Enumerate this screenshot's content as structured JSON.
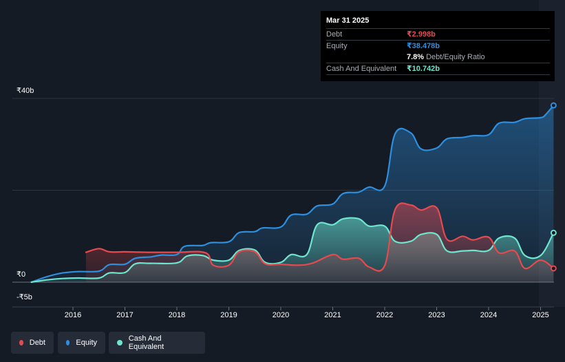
{
  "tooltip": {
    "date": "Mar 31 2025",
    "debt_label": "Debt",
    "debt_value": "₹2.998b",
    "equity_label": "Equity",
    "equity_value": "₹38.478b",
    "ratio_value": "7.8%",
    "ratio_label": "Debt/Equity Ratio",
    "cash_label": "Cash And Equivalent",
    "cash_value": "₹10.742b"
  },
  "legend": {
    "debt": "Debt",
    "equity": "Equity",
    "cash": "Cash And Equivalent"
  },
  "colors": {
    "background": "#151b24",
    "debt": "#e64a4f",
    "equity": "#2d8fe0",
    "cash": "#6ee6cf",
    "grid": "#39404a"
  },
  "chart_data": {
    "type": "area",
    "title": "",
    "xlabel": "",
    "ylabel": "",
    "ylim": [
      -5,
      40
    ],
    "y_ticks": [
      {
        "value": 40,
        "label": "₹40b"
      },
      {
        "value": 0,
        "label": "₹0"
      },
      {
        "value": -5,
        "label": "-₹5b"
      }
    ],
    "x_ticks": [
      "2016",
      "2017",
      "2018",
      "2019",
      "2020",
      "2021",
      "2022",
      "2023",
      "2024",
      "2025"
    ],
    "legend_position": "bottom-left",
    "grid": true,
    "series": [
      {
        "name": "Equity",
        "color": "#2d8fe0",
        "points": [
          [
            2015.2,
            0.0
          ],
          [
            2015.5,
            1.2
          ],
          [
            2015.8,
            2.0
          ],
          [
            2016.1,
            2.3
          ],
          [
            2016.5,
            2.4
          ],
          [
            2016.7,
            3.8
          ],
          [
            2017.0,
            3.9
          ],
          [
            2017.2,
            5.2
          ],
          [
            2017.5,
            5.5
          ],
          [
            2017.7,
            5.9
          ],
          [
            2018.0,
            6.0
          ],
          [
            2018.15,
            7.8
          ],
          [
            2018.5,
            8.0
          ],
          [
            2018.65,
            8.6
          ],
          [
            2019.0,
            8.8
          ],
          [
            2019.2,
            10.8
          ],
          [
            2019.5,
            11.0
          ],
          [
            2019.65,
            11.8
          ],
          [
            2020.0,
            12.0
          ],
          [
            2020.2,
            14.6
          ],
          [
            2020.5,
            14.8
          ],
          [
            2020.7,
            16.6
          ],
          [
            2021.0,
            17.0
          ],
          [
            2021.2,
            19.3
          ],
          [
            2021.5,
            19.6
          ],
          [
            2021.7,
            20.7
          ],
          [
            2022.0,
            20.9
          ],
          [
            2022.2,
            32.3
          ],
          [
            2022.5,
            32.5
          ],
          [
            2022.7,
            29.0
          ],
          [
            2023.0,
            29.2
          ],
          [
            2023.2,
            31.2
          ],
          [
            2023.5,
            31.5
          ],
          [
            2023.7,
            31.9
          ],
          [
            2024.0,
            32.1
          ],
          [
            2024.2,
            34.6
          ],
          [
            2024.5,
            34.8
          ],
          [
            2024.7,
            35.6
          ],
          [
            2025.0,
            35.8
          ],
          [
            2025.1,
            36.5
          ],
          [
            2025.25,
            38.478
          ]
        ]
      },
      {
        "name": "Cash And Equivalent",
        "color": "#6ee6cf",
        "points": [
          [
            2015.2,
            0.0
          ],
          [
            2015.5,
            0.5
          ],
          [
            2015.8,
            0.8
          ],
          [
            2016.1,
            0.9
          ],
          [
            2016.5,
            0.9
          ],
          [
            2016.7,
            2.0
          ],
          [
            2017.0,
            2.1
          ],
          [
            2017.2,
            4.0
          ],
          [
            2017.5,
            4.1
          ],
          [
            2018.0,
            4.2
          ],
          [
            2018.2,
            5.7
          ],
          [
            2018.5,
            5.8
          ],
          [
            2018.7,
            4.8
          ],
          [
            2019.0,
            4.8
          ],
          [
            2019.2,
            6.9
          ],
          [
            2019.5,
            7.0
          ],
          [
            2019.7,
            4.3
          ],
          [
            2020.0,
            4.3
          ],
          [
            2020.2,
            6.0
          ],
          [
            2020.5,
            6.0
          ],
          [
            2020.7,
            12.5
          ],
          [
            2021.0,
            12.5
          ],
          [
            2021.2,
            13.8
          ],
          [
            2021.5,
            13.8
          ],
          [
            2021.7,
            12.2
          ],
          [
            2022.0,
            12.2
          ],
          [
            2022.2,
            8.9
          ],
          [
            2022.5,
            8.9
          ],
          [
            2022.7,
            10.4
          ],
          [
            2023.0,
            10.4
          ],
          [
            2023.2,
            6.8
          ],
          [
            2023.5,
            6.8
          ],
          [
            2023.7,
            6.9
          ],
          [
            2024.0,
            6.9
          ],
          [
            2024.2,
            9.6
          ],
          [
            2024.5,
            9.6
          ],
          [
            2024.7,
            5.8
          ],
          [
            2025.0,
            5.8
          ],
          [
            2025.25,
            10.742
          ]
        ]
      },
      {
        "name": "Debt",
        "color": "#e64a4f",
        "points": [
          [
            2016.25,
            6.5
          ],
          [
            2016.5,
            7.3
          ],
          [
            2016.7,
            6.6
          ],
          [
            2017.0,
            6.6
          ],
          [
            2017.5,
            6.5
          ],
          [
            2018.0,
            6.5
          ],
          [
            2018.55,
            6.4
          ],
          [
            2018.7,
            3.7
          ],
          [
            2019.0,
            3.7
          ],
          [
            2019.2,
            6.6
          ],
          [
            2019.5,
            6.6
          ],
          [
            2019.7,
            4.0
          ],
          [
            2020.0,
            3.9
          ],
          [
            2020.3,
            3.7
          ],
          [
            2020.6,
            4.1
          ],
          [
            2021.0,
            6.0
          ],
          [
            2021.2,
            5.0
          ],
          [
            2021.5,
            5.2
          ],
          [
            2021.7,
            3.3
          ],
          [
            2022.0,
            3.6
          ],
          [
            2022.2,
            15.8
          ],
          [
            2022.5,
            16.8
          ],
          [
            2022.7,
            15.7
          ],
          [
            2023.0,
            16.2
          ],
          [
            2023.2,
            9.3
          ],
          [
            2023.5,
            10.0
          ],
          [
            2023.7,
            9.2
          ],
          [
            2024.0,
            9.8
          ],
          [
            2024.2,
            6.4
          ],
          [
            2024.5,
            6.8
          ],
          [
            2024.7,
            3.0
          ],
          [
            2025.0,
            4.8
          ],
          [
            2025.25,
            2.998
          ]
        ]
      }
    ]
  }
}
